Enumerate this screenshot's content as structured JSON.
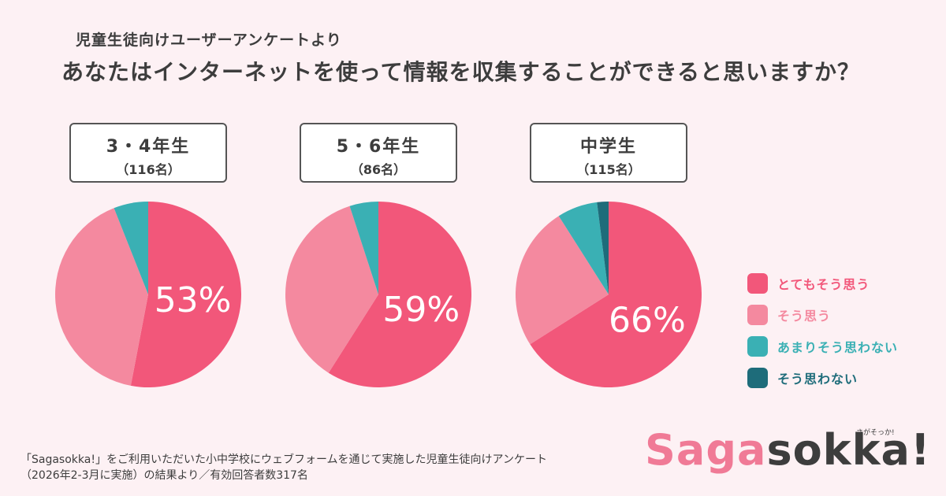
{
  "header": {
    "subtitle": "児童生徒向けユーザーアンケートより",
    "title": "あなたはインターネットを使って情報を収集することができると思いますか？"
  },
  "colors": {
    "very_agree": "#f2577a",
    "agree": "#f4899f",
    "somewhat_disagree": "#3ab0b4",
    "disagree": "#1e6c7a"
  },
  "chart_data": [
    {
      "type": "pie",
      "group": "3・4年生",
      "count_label": "（116名）",
      "highlight_label": "53%",
      "categories": [
        "とてもそう思う",
        "そう思う",
        "あまりそう思わない",
        "そう思わない"
      ],
      "values": [
        53,
        41,
        6,
        0
      ]
    },
    {
      "type": "pie",
      "group": "5・6年生",
      "count_label": "（86名）",
      "highlight_label": "59%",
      "categories": [
        "とてもそう思う",
        "そう思う",
        "あまりそう思わない",
        "そう思わない"
      ],
      "values": [
        59,
        36,
        5,
        0
      ]
    },
    {
      "type": "pie",
      "group": "中学生",
      "count_label": "（115名）",
      "highlight_label": "66%",
      "categories": [
        "とてもそう思う",
        "そう思う",
        "あまりそう思わない",
        "そう思わない"
      ],
      "values": [
        66,
        25,
        7,
        2
      ]
    }
  ],
  "legend": [
    {
      "label": "とてもそう思う",
      "color": "#f2577a"
    },
    {
      "label": "そう思う",
      "color": "#f4899f"
    },
    {
      "label": "あまりそう思わない",
      "color": "#3ab0b4"
    },
    {
      "label": "そう思わない",
      "color": "#1e6c7a"
    }
  ],
  "footnote": {
    "line1": "「Sagasokka!」をご利用いただいた小中学校にウェブフォームを通じて実施した児童生徒向けアンケート",
    "line2": "（2026年2-3月に実施）の結果より／有効回答者数317名"
  },
  "logo": {
    "part1": "Saga",
    "part2": "sokka!",
    "small": "さがそっか!"
  }
}
